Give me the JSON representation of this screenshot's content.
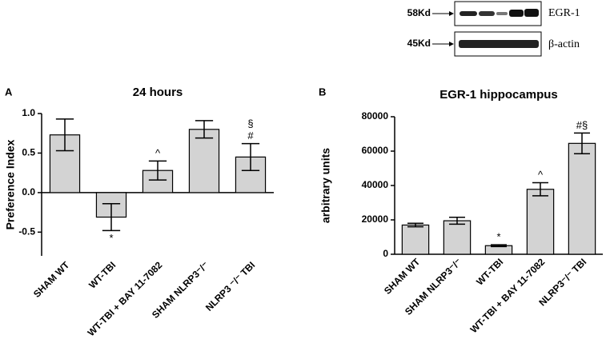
{
  "blot": {
    "bands": [
      {
        "size": "58Kd",
        "protein": "EGR-1"
      },
      {
        "size": "45Kd",
        "protein": "β-actin"
      }
    ]
  },
  "chart_data": [
    {
      "type": "bar",
      "panel": "A",
      "title": "24 hours",
      "y_label": "Preference Index",
      "categories": [
        "SHAM WT",
        "WT-TBI",
        "WT-TBI + BAY 11-7082",
        "SHAM NLRP3⁻/⁻",
        "NLRP3 ⁻/⁻ TBI"
      ],
      "values": [
        0.73,
        -0.31,
        0.28,
        0.8,
        0.45
      ],
      "errors": [
        0.2,
        0.17,
        0.12,
        0.11,
        0.17
      ],
      "annotations": [
        null,
        [
          "*"
        ],
        [
          "^"
        ],
        null,
        [
          "§",
          "#"
        ]
      ],
      "color": "#d3d3d3",
      "ylim": [
        -0.8,
        1.0
      ],
      "yticks": [
        {
          "value": 1.0,
          "label": "1.0"
        },
        0.5,
        {
          "value": 0,
          "label": "0.0"
        },
        -0.5
      ]
    },
    {
      "type": "bar",
      "panel": "B",
      "title": "EGR-1 hippocampus",
      "y_label": "arbitrary units",
      "categories": [
        "SHAM WT",
        "SHAM NLRP3⁻/⁻",
        "WT-TBI",
        "WT-TBI + BAY 11-7082",
        "NLRP3⁻/⁻ TBI"
      ],
      "values": [
        17000,
        19500,
        5000,
        37800,
        64500
      ],
      "errors": [
        1000,
        2000,
        500,
        3800,
        6000
      ],
      "annotations": [
        null,
        null,
        [
          "*"
        ],
        [
          "^"
        ],
        [
          "#§"
        ]
      ],
      "color": "#d3d3d3",
      "ylim": [
        0,
        80000
      ],
      "yticks": [
        0,
        20000,
        40000,
        60000,
        80000
      ]
    }
  ]
}
